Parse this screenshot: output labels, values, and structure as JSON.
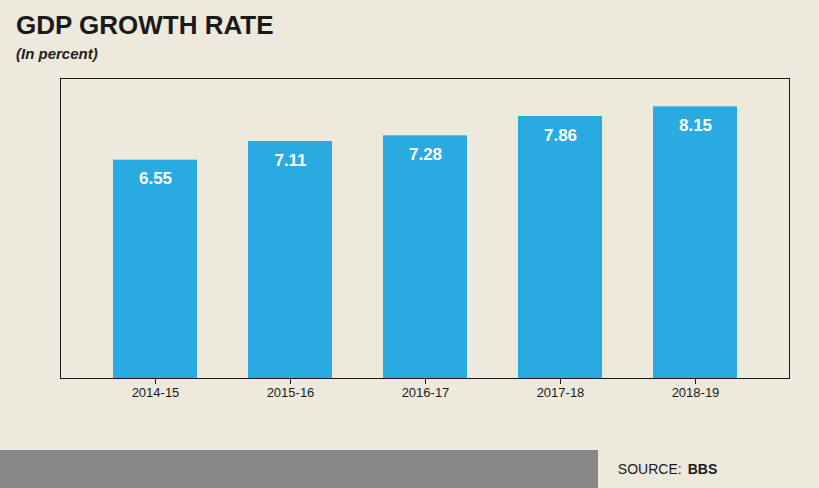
{
  "chart_data": {
    "type": "bar",
    "title": "GDP GROWTH RATE",
    "subtitle": "(In percent)",
    "categories": [
      "2014-15",
      "2015-16",
      "2016-17",
      "2017-18",
      "2018-19"
    ],
    "values": [
      6.55,
      7.11,
      7.28,
      7.86,
      8.15
    ],
    "color": "#29ABE2",
    "ylim": [
      0,
      9.0
    ],
    "tick_labels": "x",
    "grid": false,
    "data_labels": true,
    "source": [
      "SOURCE:",
      "BBS"
    ]
  }
}
